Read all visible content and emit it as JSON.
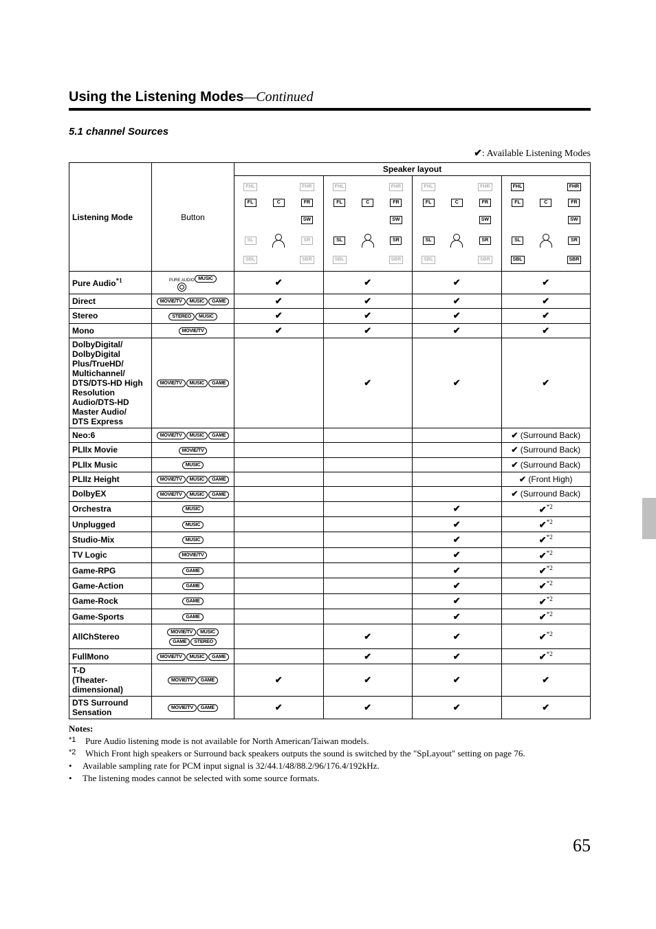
{
  "title": {
    "main": "Using the Listening Modes",
    "continued": "—Continued"
  },
  "subsection": "5.1 channel Sources",
  "legend": {
    "check": "✔",
    "label": ": Available Listening Modes"
  },
  "headers": {
    "listening_mode": "Listening Mode",
    "button": "Button",
    "speaker_layout": "Speaker layout"
  },
  "speaker_labels": {
    "FHL": "FHL",
    "FHR": "FHR",
    "FL": "FL",
    "C": "C",
    "FR": "FR",
    "SW": "SW",
    "SL": "SL",
    "SR": "SR",
    "SBL": "SBL",
    "SBR": "SBR"
  },
  "buttons": {
    "movietv": "MOVIE/TV",
    "music": "MUSIC",
    "game": "GAME",
    "stereo": "STEREO",
    "pure_audio": "PURE AUDIO"
  },
  "rows": [
    {
      "name": "Pure Audio*1",
      "btns": [
        "pa",
        "music"
      ],
      "m": [
        "✔",
        "✔",
        "✔",
        "✔"
      ]
    },
    {
      "name": "Direct",
      "btns": [
        "movietv",
        "music",
        "game"
      ],
      "m": [
        "✔",
        "✔",
        "✔",
        "✔"
      ]
    },
    {
      "name": "Stereo",
      "btns": [
        "stereo",
        "music"
      ],
      "m": [
        "✔",
        "✔",
        "✔",
        "✔"
      ]
    },
    {
      "name": "Mono",
      "btns": [
        "movietv"
      ],
      "m": [
        "✔",
        "✔",
        "✔",
        "✔"
      ]
    },
    {
      "name": "DolbyDigital/\nDolbyDigital Plus/TrueHD/\nMultichannel/\nDTS/DTS-HD High Resolution Audio/DTS-HD Master Audio/\nDTS Express",
      "btns": [
        "movietv",
        "music",
        "game"
      ],
      "m": [
        "",
        "✔",
        "✔",
        "✔"
      ]
    },
    {
      "name": "Neo:6",
      "btns": [
        "movietv",
        "music",
        "game"
      ],
      "m": [
        "",
        "",
        "",
        "✔ (Surround Back)"
      ]
    },
    {
      "name": "PLIIx Movie",
      "btns": [
        "movietv"
      ],
      "m": [
        "",
        "",
        "",
        "✔ (Surround Back)"
      ]
    },
    {
      "name": "PLIIx Music",
      "btns": [
        "music"
      ],
      "m": [
        "",
        "",
        "",
        "✔ (Surround Back)"
      ]
    },
    {
      "name": "PLIIz Height",
      "btns": [
        "movietv",
        "music",
        "game"
      ],
      "m": [
        "",
        "",
        "",
        "✔ (Front High)"
      ]
    },
    {
      "name": "DolbyEX",
      "btns": [
        "movietv",
        "music",
        "game"
      ],
      "m": [
        "",
        "",
        "",
        "✔ (Surround Back)"
      ]
    },
    {
      "name": "Orchestra",
      "btns": [
        "music"
      ],
      "m": [
        "",
        "",
        "✔",
        "✔*2"
      ]
    },
    {
      "name": "Unplugged",
      "btns": [
        "music"
      ],
      "m": [
        "",
        "",
        "✔",
        "✔*2"
      ]
    },
    {
      "name": "Studio-Mix",
      "btns": [
        "music"
      ],
      "m": [
        "",
        "",
        "✔",
        "✔*2"
      ]
    },
    {
      "name": "TV Logic",
      "btns": [
        "movietv"
      ],
      "m": [
        "",
        "",
        "✔",
        "✔*2"
      ]
    },
    {
      "name": "Game-RPG",
      "btns": [
        "game"
      ],
      "m": [
        "",
        "",
        "✔",
        "✔*2"
      ]
    },
    {
      "name": "Game-Action",
      "btns": [
        "game"
      ],
      "m": [
        "",
        "",
        "✔",
        "✔*2"
      ]
    },
    {
      "name": "Game-Rock",
      "btns": [
        "game"
      ],
      "m": [
        "",
        "",
        "✔",
        "✔*2"
      ]
    },
    {
      "name": "Game-Sports",
      "btns": [
        "game"
      ],
      "m": [
        "",
        "",
        "✔",
        "✔*2"
      ]
    },
    {
      "name": "AllChStereo",
      "btns": [
        "movietv",
        "music",
        "game",
        "stereo"
      ],
      "m": [
        "",
        "✔",
        "✔",
        "✔*2"
      ],
      "twoRow": true
    },
    {
      "name": "FullMono",
      "btns": [
        "movietv",
        "music",
        "game"
      ],
      "m": [
        "",
        "✔",
        "✔",
        "✔*2"
      ]
    },
    {
      "name": "T-D\n(Theater-dimensional)",
      "btns": [
        "movietv",
        "game"
      ],
      "m": [
        "✔",
        "✔",
        "✔",
        "✔"
      ]
    },
    {
      "name": "DTS Surround Sensation",
      "btns": [
        "movietv",
        "game"
      ],
      "m": [
        "✔",
        "✔",
        "✔",
        "✔"
      ]
    }
  ],
  "layouts": [
    {
      "FHL": 0,
      "FHR": 0,
      "FL": 1,
      "C": 1,
      "FR": 1,
      "SW": 1,
      "SL": 0,
      "SR": 0,
      "SBL": 0,
      "SBR": 0
    },
    {
      "FHL": 0,
      "FHR": 0,
      "FL": 1,
      "C": 1,
      "FR": 1,
      "SW": 1,
      "SL": 1,
      "SR": 1,
      "SBL": 0,
      "SBR": 0
    },
    {
      "FHL": 0,
      "FHR": 0,
      "FL": 1,
      "C": 1,
      "FR": 1,
      "SW": 1,
      "SL": 1,
      "SR": 1,
      "SBL": 0,
      "SBR": 0
    },
    {
      "FHL": 1,
      "FHR": 1,
      "FL": 1,
      "C": 1,
      "FR": 1,
      "SW": 1,
      "SL": 1,
      "SR": 1,
      "SBL": 1,
      "SBR": 1
    }
  ],
  "notes": {
    "header": "Notes:",
    "items": [
      {
        "tag": "*1",
        "text": "Pure Audio listening mode is not available for North American/Taiwan models."
      },
      {
        "tag": "*2",
        "text": "Which Front high speakers or Surround back speakers outputs the sound is switched by the \"SpLayout\" setting on page 76."
      },
      {
        "tag": "•",
        "text": "Available sampling rate for PCM input signal is 32/44.1/48/88.2/96/176.4/192kHz."
      },
      {
        "tag": "•",
        "text": "The listening modes cannot be selected with some source formats."
      }
    ]
  },
  "page_number": "65"
}
